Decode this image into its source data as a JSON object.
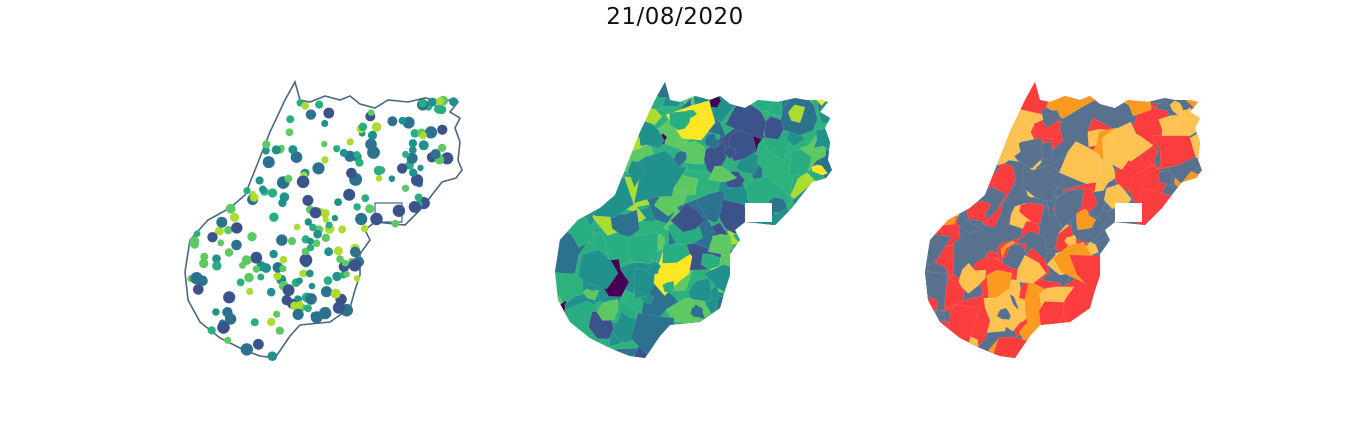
{
  "title": "21/08/2020",
  "maps": [
    {
      "name": "dot-map",
      "kind": "points",
      "outline_color": "#4a6784",
      "fill": "#ffffff"
    },
    {
      "name": "choropleth-map",
      "kind": "viridis-regions",
      "base_color": "#2db27d"
    },
    {
      "name": "class-map",
      "kind": "category-regions",
      "base_color": "#57718f"
    }
  ],
  "palettes": {
    "viridis": [
      "#440154",
      "#3b528b",
      "#2c728e",
      "#21918c",
      "#28ae80",
      "#5ec962",
      "#addc30",
      "#fde725"
    ],
    "classes": [
      "#57718f",
      "#fc3d3d",
      "#fdc250",
      "#fb9a1f"
    ]
  }
}
